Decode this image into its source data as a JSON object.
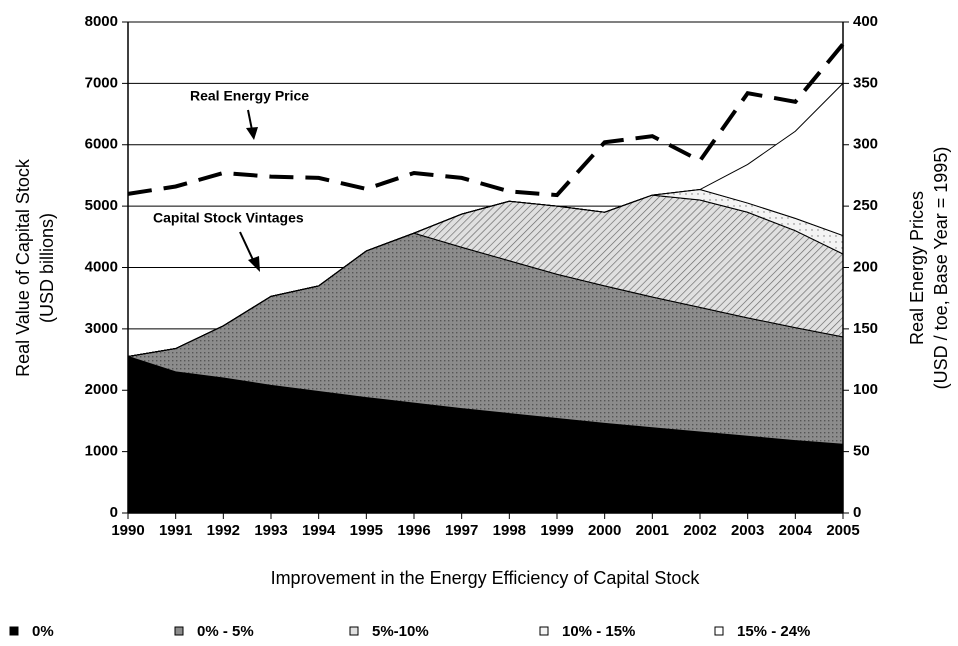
{
  "chart_data": {
    "type": "stacked-area",
    "x": [
      1990,
      1991,
      1992,
      1993,
      1994,
      1995,
      1996,
      1997,
      1998,
      1999,
      2000,
      2001,
      2002,
      2003,
      2004,
      2005
    ],
    "xlim": [
      1990,
      2005
    ],
    "xticks": [
      1990,
      1991,
      1992,
      1993,
      1994,
      1995,
      1996,
      1997,
      1998,
      1999,
      2000,
      2001,
      2002,
      2003,
      2004,
      2005
    ],
    "ylim": [
      0,
      8000
    ],
    "yticks": [
      0,
      1000,
      2000,
      3000,
      4000,
      5000,
      6000,
      7000,
      8000
    ],
    "y2lim": [
      0,
      400
    ],
    "y2ticks": [
      0,
      50,
      100,
      150,
      200,
      250,
      300,
      350,
      400
    ],
    "grid": true,
    "x_label": "Improvement in the Energy Efficiency of Capital Stock",
    "y_label": [
      "Real Value of Capital Stock",
      "(USD billions)"
    ],
    "y2_label": [
      "Real Energy Prices",
      "(USD / toe, Base Year = 1995)"
    ],
    "annotations": [
      "Real Energy Price",
      "Capital Stock Vintages"
    ],
    "legend": "bottom",
    "series": [
      {
        "name": "0%",
        "color": "#000000",
        "values": [
          2550,
          2300,
          2200,
          2080,
          1980,
          1880,
          1790,
          1700,
          1620,
          1540,
          1460,
          1390,
          1320,
          1250,
          1180,
          1120
        ]
      },
      {
        "name": "0% - 5%",
        "color": "#8c8c8c",
        "values": [
          0,
          380,
          850,
          1450,
          1720,
          2390,
          2770,
          2630,
          2490,
          2350,
          2240,
          2130,
          2030,
          1930,
          1840,
          1750
        ]
      },
      {
        "name": "5%-10%",
        "color": "#e0e0e0",
        "values": [
          0,
          0,
          0,
          0,
          0,
          0,
          0,
          540,
          970,
          1110,
          1200,
          1660,
          1750,
          1720,
          1580,
          1350
        ]
      },
      {
        "name": "10% - 15%",
        "color": "#f4f4f4",
        "values": [
          0,
          0,
          0,
          0,
          0,
          0,
          0,
          0,
          0,
          0,
          0,
          0,
          170,
          150,
          200,
          300
        ]
      },
      {
        "name": "15% - 24%",
        "color": "#ffffff",
        "values": [
          0,
          0,
          0,
          0,
          0,
          0,
          0,
          0,
          0,
          0,
          0,
          0,
          0,
          630,
          1420,
          2480
        ]
      },
      {
        "type": "line",
        "axis": "y2",
        "color": "#000000",
        "dashed": true,
        "values": [
          260,
          266,
          277,
          274,
          273,
          264,
          277,
          273,
          262,
          259,
          302,
          307,
          287,
          342,
          335,
          382
        ]
      }
    ]
  }
}
